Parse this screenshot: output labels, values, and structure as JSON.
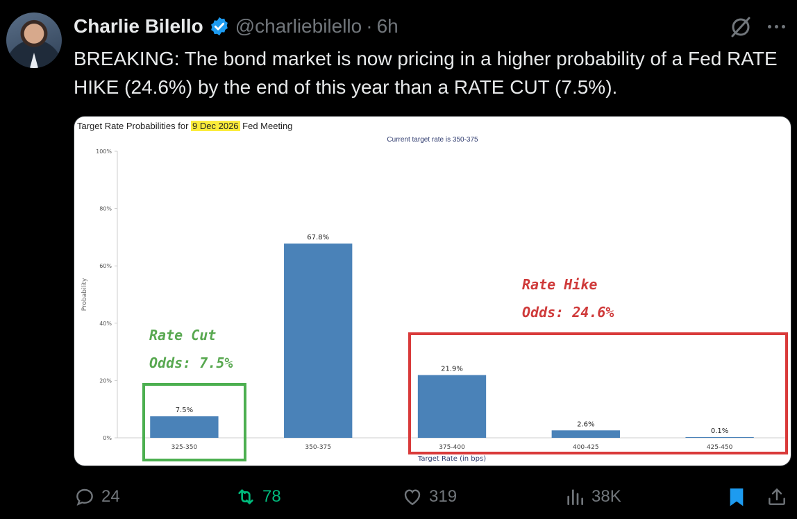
{
  "author": {
    "name": "Charlie Bilello",
    "handle": "@charliebilello",
    "separator": "·",
    "time": "6h"
  },
  "tweet": {
    "text": "BREAKING: The bond market is now pricing in a higher probability of a Fed RATE HIKE (24.6%) by the end of this year than a RATE CUT (7.5%)."
  },
  "chart_data": {
    "type": "bar",
    "title_prefix": "Target Rate Probabilities for ",
    "title_highlight": "9 Dec 2026",
    "title_suffix": " Fed Meeting",
    "subtitle": "Current target rate is 350-375",
    "xlabel": "Target Rate (in bps)",
    "ylabel": "Probability",
    "ylim": [
      0,
      100
    ],
    "yticks": [
      "0%",
      "20%",
      "40%",
      "60%",
      "80%",
      "100%"
    ],
    "categories": [
      "325-350",
      "350-375",
      "375-400",
      "400-425",
      "425-450"
    ],
    "values": [
      7.5,
      67.8,
      21.9,
      2.6,
      0.1
    ],
    "data_labels": [
      "7.5%",
      "67.8%",
      "21.9%",
      "2.6%",
      "0.1%"
    ],
    "bar_color": "#4a82b8",
    "grid": false
  },
  "annotations": {
    "cut_line1": "Rate Cut",
    "cut_line2": "Odds: 7.5%",
    "hike_line1": "Rate Hike",
    "hike_line2": "Odds: 24.6%",
    "cut_color": "#58a850",
    "hike_color": "#cf3a3a"
  },
  "actions": {
    "replies": "24",
    "retweets": "78",
    "likes": "319",
    "views": "38K"
  },
  "icons": [
    "verified-badge-icon",
    "grok-icon",
    "more-icon",
    "reply-icon",
    "retweet-icon",
    "like-icon",
    "views-icon",
    "bookmark-icon",
    "share-icon"
  ]
}
